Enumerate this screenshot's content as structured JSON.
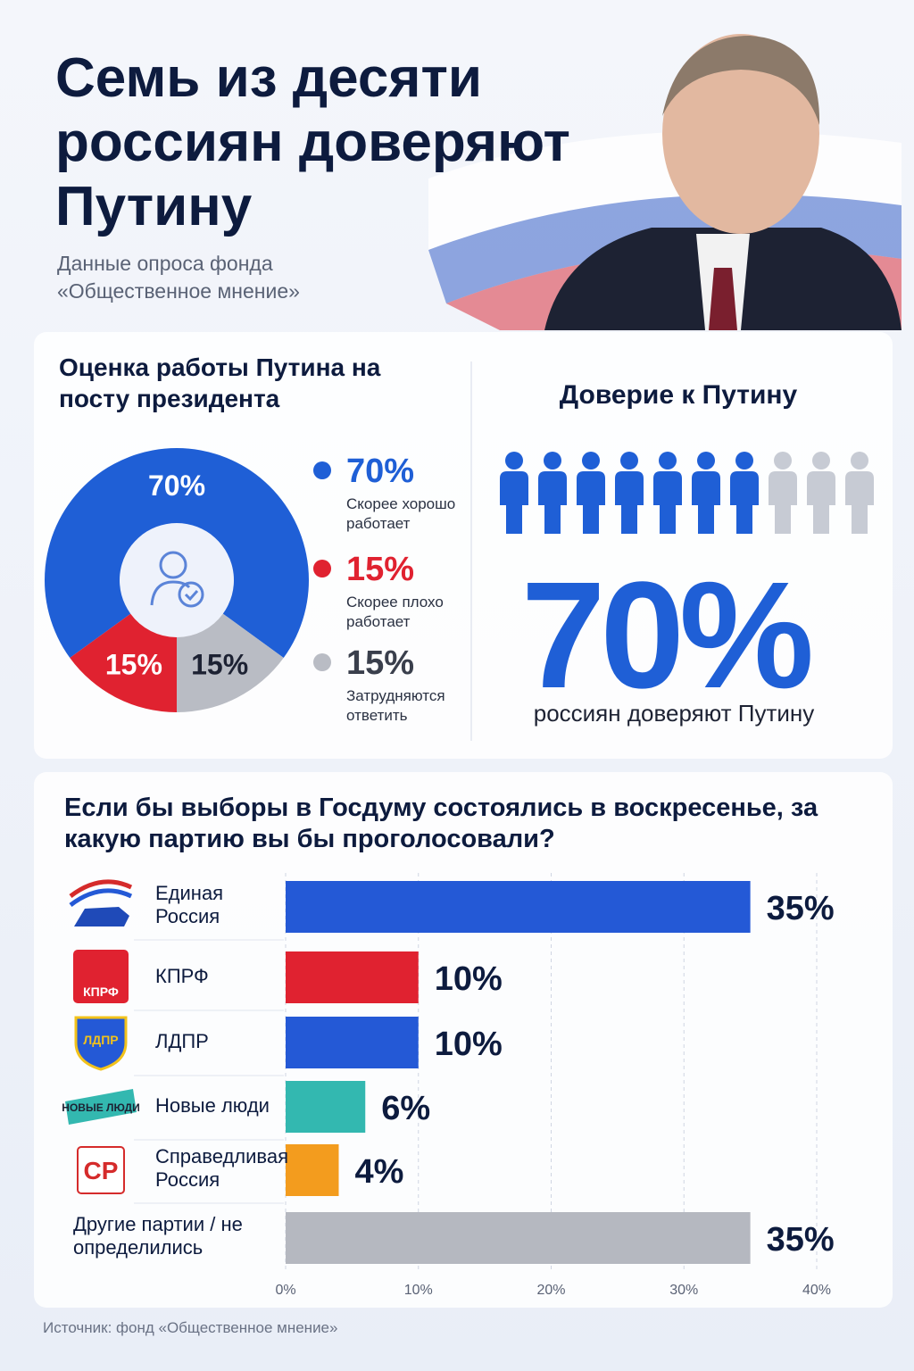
{
  "header": {
    "title": "Семь из десяти россиян доверяют Путину",
    "subtitle": "Данные опроса фонда «Общественное мнение»"
  },
  "chart_data": [
    {
      "type": "pie",
      "title": "Оценка работы Путина на посту президента",
      "categories": [
        "Скорее хорошо работает",
        "Скорее плохо работает",
        "Затрудняются ответить"
      ],
      "values": [
        70,
        15,
        15
      ],
      "value_labels": [
        "70%",
        "15%",
        "15%"
      ],
      "colors": [
        "#1f5fd6",
        "#e02230",
        "#b9bcc4"
      ]
    },
    {
      "type": "pictogram",
      "title": "Доверие к Путину",
      "value": 70,
      "value_label": "70%",
      "caption": "россиян доверяют Путину",
      "color": "#1f5fd6"
    },
    {
      "type": "bar",
      "orientation": "horizontal",
      "title": "Если бы выборы в Госдуму состоялись в воскресенье, за какую партию вы бы проголосовали?",
      "categories": [
        "Единая Россия",
        "КПРФ",
        "ЛДПР",
        "Новые люди",
        "Справедливая Россия",
        "Другие партии / не определились"
      ],
      "logos": [
        null,
        "КПРФ",
        "ЛДПР",
        "НОВЫЕ ЛЮДИ",
        "СР",
        null
      ],
      "values": [
        35,
        10,
        10,
        6,
        4,
        35
      ],
      "value_labels": [
        "35%",
        "10%",
        "10%",
        "6%",
        "4%",
        "35%"
      ],
      "colors": [
        "#2459d6",
        "#e02230",
        "#2459d6",
        "#33b8b0",
        "#f39c1e",
        "#b5b8c0"
      ],
      "xlim": [
        0,
        40
      ],
      "xticks": [
        {
          "value": 0,
          "label": "0%"
        },
        {
          "value": 10,
          "label": "10%"
        },
        {
          "value": 20,
          "label": "20%"
        },
        {
          "value": 30,
          "label": "30%"
        },
        {
          "value": 40,
          "label": "40%"
        }
      ],
      "grid": true
    }
  ],
  "source": "Источник: фонд «Общественное мнение»"
}
